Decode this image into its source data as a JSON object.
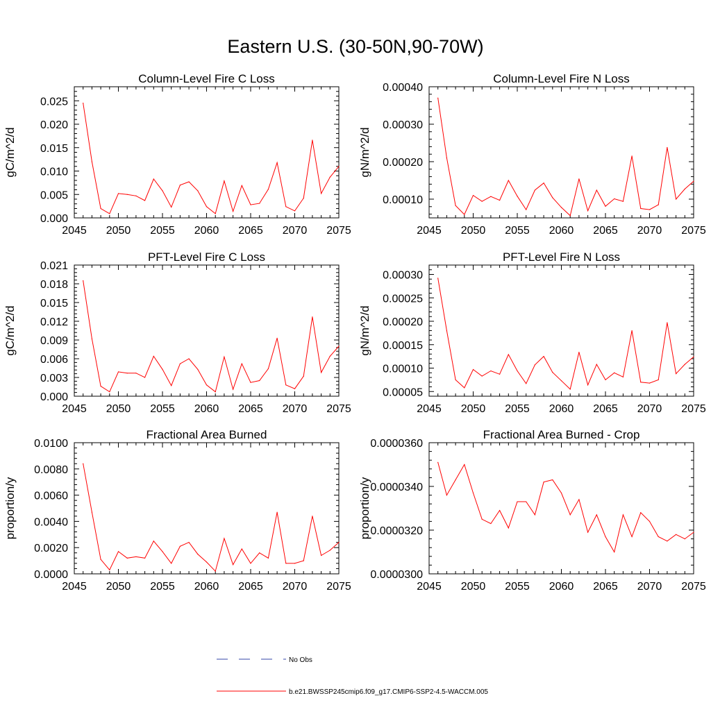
{
  "page_title": "Eastern U.S. (30-50N,90-70W)",
  "legend": {
    "entries": [
      {
        "label": "No Obs",
        "color": "#3344aa",
        "dashed": true
      },
      {
        "label": "b.e21.BWSSP245cmip6.f09_g17.CMIP6-SSP2-4.5-WACCM.005",
        "color": "#ff0000",
        "dashed": false
      }
    ]
  },
  "chart_data": [
    {
      "type": "line",
      "title": "Column-Level Fire C Loss",
      "ylabel": "gC/m^2/d",
      "xlim": [
        2045,
        2075
      ],
      "ylim": [
        0,
        0.028
      ],
      "xticks": [
        2045,
        2050,
        2055,
        2060,
        2065,
        2070,
        2075
      ],
      "xtick_labels": [
        "2045",
        "2050",
        "2055",
        "2060",
        "2065",
        "2070",
        "2075"
      ],
      "yticks": [
        0,
        0.005,
        0.01,
        0.015,
        0.02,
        0.025
      ],
      "ytick_labels": [
        "0.000",
        "0.005",
        "0.010",
        "0.015",
        "0.020",
        "0.025"
      ],
      "color": "#ff0000",
      "x": [
        2046,
        2047,
        2048,
        2049,
        2050,
        2051,
        2052,
        2053,
        2054,
        2055,
        2056,
        2057,
        2058,
        2059,
        2060,
        2061,
        2062,
        2063,
        2064,
        2065,
        2066,
        2067,
        2068,
        2069,
        2070,
        2071,
        2072,
        2073,
        2074,
        2075
      ],
      "values": [
        0.0245,
        0.012,
        0.002,
        0.0009,
        0.0052,
        0.005,
        0.0047,
        0.0037,
        0.0083,
        0.0058,
        0.0023,
        0.007,
        0.0077,
        0.0058,
        0.0024,
        0.0009,
        0.0079,
        0.0014,
        0.0069,
        0.0028,
        0.0031,
        0.0061,
        0.0118,
        0.0024,
        0.0015,
        0.0042,
        0.0166,
        0.0052,
        0.0087,
        0.011
      ]
    },
    {
      "type": "line",
      "title": "Column-Level Fire N Loss",
      "ylabel": "gN/m^2/d",
      "xlim": [
        2045,
        2075
      ],
      "ylim": [
        5e-05,
        0.0004
      ],
      "xticks": [
        2045,
        2050,
        2055,
        2060,
        2065,
        2070,
        2075
      ],
      "xtick_labels": [
        "2045",
        "2050",
        "2055",
        "2060",
        "2065",
        "2070",
        "2075"
      ],
      "yticks": [
        0.0001,
        0.0002,
        0.0003,
        0.0004
      ],
      "ytick_labels": [
        "0.00010",
        "0.00020",
        "0.00030",
        "0.00040"
      ],
      "color": "#ff0000",
      "x": [
        2046,
        2047,
        2048,
        2049,
        2050,
        2051,
        2052,
        2053,
        2054,
        2055,
        2056,
        2057,
        2058,
        2059,
        2060,
        2061,
        2062,
        2063,
        2064,
        2065,
        2066,
        2067,
        2068,
        2069,
        2070,
        2071,
        2072,
        2073,
        2074,
        2075
      ],
      "values": [
        0.00037,
        0.00021,
        8.3e-05,
        5.9e-05,
        0.00011,
        9.4e-05,
        0.000107,
        9.7e-05,
        0.00015,
        0.000108,
        7.2e-05,
        0.000124,
        0.000143,
        0.000104,
        7.8e-05,
        5.6e-05,
        0.000154,
        6.9e-05,
        0.000124,
        8.1e-05,
        0.000101,
        9.4e-05,
        0.000215,
        7.5e-05,
        7.2e-05,
        8.5e-05,
        0.000238,
        0.0001,
        0.000127,
        0.000148
      ]
    },
    {
      "type": "line",
      "title": "PFT-Level Fire C Loss",
      "ylabel": "gC/m^2/d",
      "xlim": [
        2045,
        2075
      ],
      "ylim": [
        0,
        0.021
      ],
      "xticks": [
        2045,
        2050,
        2055,
        2060,
        2065,
        2070,
        2075
      ],
      "xtick_labels": [
        "2045",
        "2050",
        "2055",
        "2060",
        "2065",
        "2070",
        "2075"
      ],
      "yticks": [
        0,
        0.003,
        0.006,
        0.009,
        0.012,
        0.015,
        0.018,
        0.021
      ],
      "ytick_labels": [
        "0.000",
        "0.003",
        "0.006",
        "0.009",
        "0.012",
        "0.015",
        "0.018",
        "0.021"
      ],
      "color": "#ff0000",
      "x": [
        2046,
        2047,
        2048,
        2049,
        2050,
        2051,
        2052,
        2053,
        2054,
        2055,
        2056,
        2057,
        2058,
        2059,
        2060,
        2061,
        2062,
        2063,
        2064,
        2065,
        2066,
        2067,
        2068,
        2069,
        2070,
        2071,
        2072,
        2073,
        2074,
        2075
      ],
      "values": [
        0.0185,
        0.0092,
        0.0016,
        0.0007,
        0.0039,
        0.0037,
        0.0037,
        0.003,
        0.0064,
        0.0043,
        0.0017,
        0.0052,
        0.006,
        0.0043,
        0.0018,
        0.0007,
        0.0063,
        0.0011,
        0.0052,
        0.0022,
        0.0025,
        0.0044,
        0.0093,
        0.0018,
        0.0012,
        0.0032,
        0.0127,
        0.0038,
        0.0064,
        0.008
      ]
    },
    {
      "type": "line",
      "title": "PFT-Level Fire N Loss",
      "ylabel": "gN/m^2/d",
      "xlim": [
        2045,
        2075
      ],
      "ylim": [
        4e-05,
        0.00032
      ],
      "xticks": [
        2045,
        2050,
        2055,
        2060,
        2065,
        2070,
        2075
      ],
      "xtick_labels": [
        "2045",
        "2050",
        "2055",
        "2060",
        "2065",
        "2070",
        "2075"
      ],
      "yticks": [
        5e-05,
        0.0001,
        0.00015,
        0.0002,
        0.00025,
        0.0003
      ],
      "ytick_labels": [
        "0.00005",
        "0.00010",
        "0.00015",
        "0.00020",
        "0.00025",
        "0.00030"
      ],
      "color": "#ff0000",
      "x": [
        2046,
        2047,
        2048,
        2049,
        2050,
        2051,
        2052,
        2053,
        2054,
        2055,
        2056,
        2057,
        2058,
        2059,
        2060,
        2061,
        2062,
        2063,
        2064,
        2065,
        2066,
        2067,
        2068,
        2069,
        2070,
        2071,
        2072,
        2073,
        2074,
        2075
      ],
      "values": [
        0.000292,
        0.00018,
        7.5e-05,
        5.8e-05,
        9.7e-05,
        8.3e-05,
        9.4e-05,
        8.7e-05,
        0.000129,
        9.4e-05,
        6.7e-05,
        0.000107,
        0.000125,
        9.1e-05,
        7.3e-05,
        5.5e-05,
        0.000134,
        6.4e-05,
        0.000108,
        7.5e-05,
        9e-05,
        8.1e-05,
        0.00018,
        7e-05,
        6.8e-05,
        7.5e-05,
        0.000197,
        8.8e-05,
        0.000108,
        0.000124
      ]
    },
    {
      "type": "line",
      "title": "Fractional Area Burned",
      "ylabel": "proportion/y",
      "xlim": [
        2045,
        2075
      ],
      "ylim": [
        0,
        0.01
      ],
      "xticks": [
        2045,
        2050,
        2055,
        2060,
        2065,
        2070,
        2075
      ],
      "xtick_labels": [
        "2045",
        "2050",
        "2055",
        "2060",
        "2065",
        "2070",
        "2075"
      ],
      "yticks": [
        0,
        0.002,
        0.004,
        0.006,
        0.008,
        0.01
      ],
      "ytick_labels": [
        "0.0000",
        "0.0020",
        "0.0040",
        "0.0060",
        "0.0080",
        "0.0100"
      ],
      "color": "#ff0000",
      "x": [
        2046,
        2047,
        2048,
        2049,
        2050,
        2051,
        2052,
        2053,
        2054,
        2055,
        2056,
        2057,
        2058,
        2059,
        2060,
        2061,
        2062,
        2063,
        2064,
        2065,
        2066,
        2067,
        2068,
        2069,
        2070,
        2071,
        2072,
        2073,
        2074,
        2075
      ],
      "values": [
        0.0084,
        0.0047,
        0.0011,
        0.0003,
        0.0017,
        0.0012,
        0.0013,
        0.0012,
        0.0025,
        0.0017,
        0.0008,
        0.0021,
        0.0024,
        0.0015,
        0.0009,
        0.0002,
        0.0027,
        0.0007,
        0.0019,
        0.0008,
        0.0016,
        0.0012,
        0.0047,
        0.0008,
        0.0008,
        0.001,
        0.0044,
        0.0014,
        0.0018,
        0.0024
      ]
    },
    {
      "type": "line",
      "title": "Fractional Area Burned - Crop",
      "ylabel": "proportion/y",
      "xlim": [
        2045,
        2075
      ],
      "ylim": [
        3e-05,
        3.6e-05
      ],
      "xticks": [
        2045,
        2050,
        2055,
        2060,
        2065,
        2070,
        2075
      ],
      "xtick_labels": [
        "2045",
        "2050",
        "2055",
        "2060",
        "2065",
        "2070",
        "2075"
      ],
      "yticks": [
        3e-05,
        3.2e-05,
        3.4e-05,
        3.6e-05
      ],
      "ytick_labels": [
        "0.0000300",
        "0.0000320",
        "0.0000340",
        "0.0000360"
      ],
      "color": "#ff0000",
      "x": [
        2046,
        2047,
        2048,
        2049,
        2050,
        2051,
        2052,
        2053,
        2054,
        2055,
        2056,
        2057,
        2058,
        2059,
        2060,
        2061,
        2062,
        2063,
        2064,
        2065,
        2066,
        2067,
        2068,
        2069,
        2070,
        2071,
        2072,
        2073,
        2074,
        2075
      ],
      "values": [
        3.51e-05,
        3.36e-05,
        3.43e-05,
        3.5e-05,
        3.37e-05,
        3.25e-05,
        3.23e-05,
        3.29e-05,
        3.21e-05,
        3.33e-05,
        3.33e-05,
        3.27e-05,
        3.42e-05,
        3.43e-05,
        3.37e-05,
        3.27e-05,
        3.34e-05,
        3.19e-05,
        3.27e-05,
        3.17e-05,
        3.1e-05,
        3.27e-05,
        3.17e-05,
        3.28e-05,
        3.24e-05,
        3.17e-05,
        3.15e-05,
        3.18e-05,
        3.16e-05,
        3.19e-05
      ]
    }
  ]
}
